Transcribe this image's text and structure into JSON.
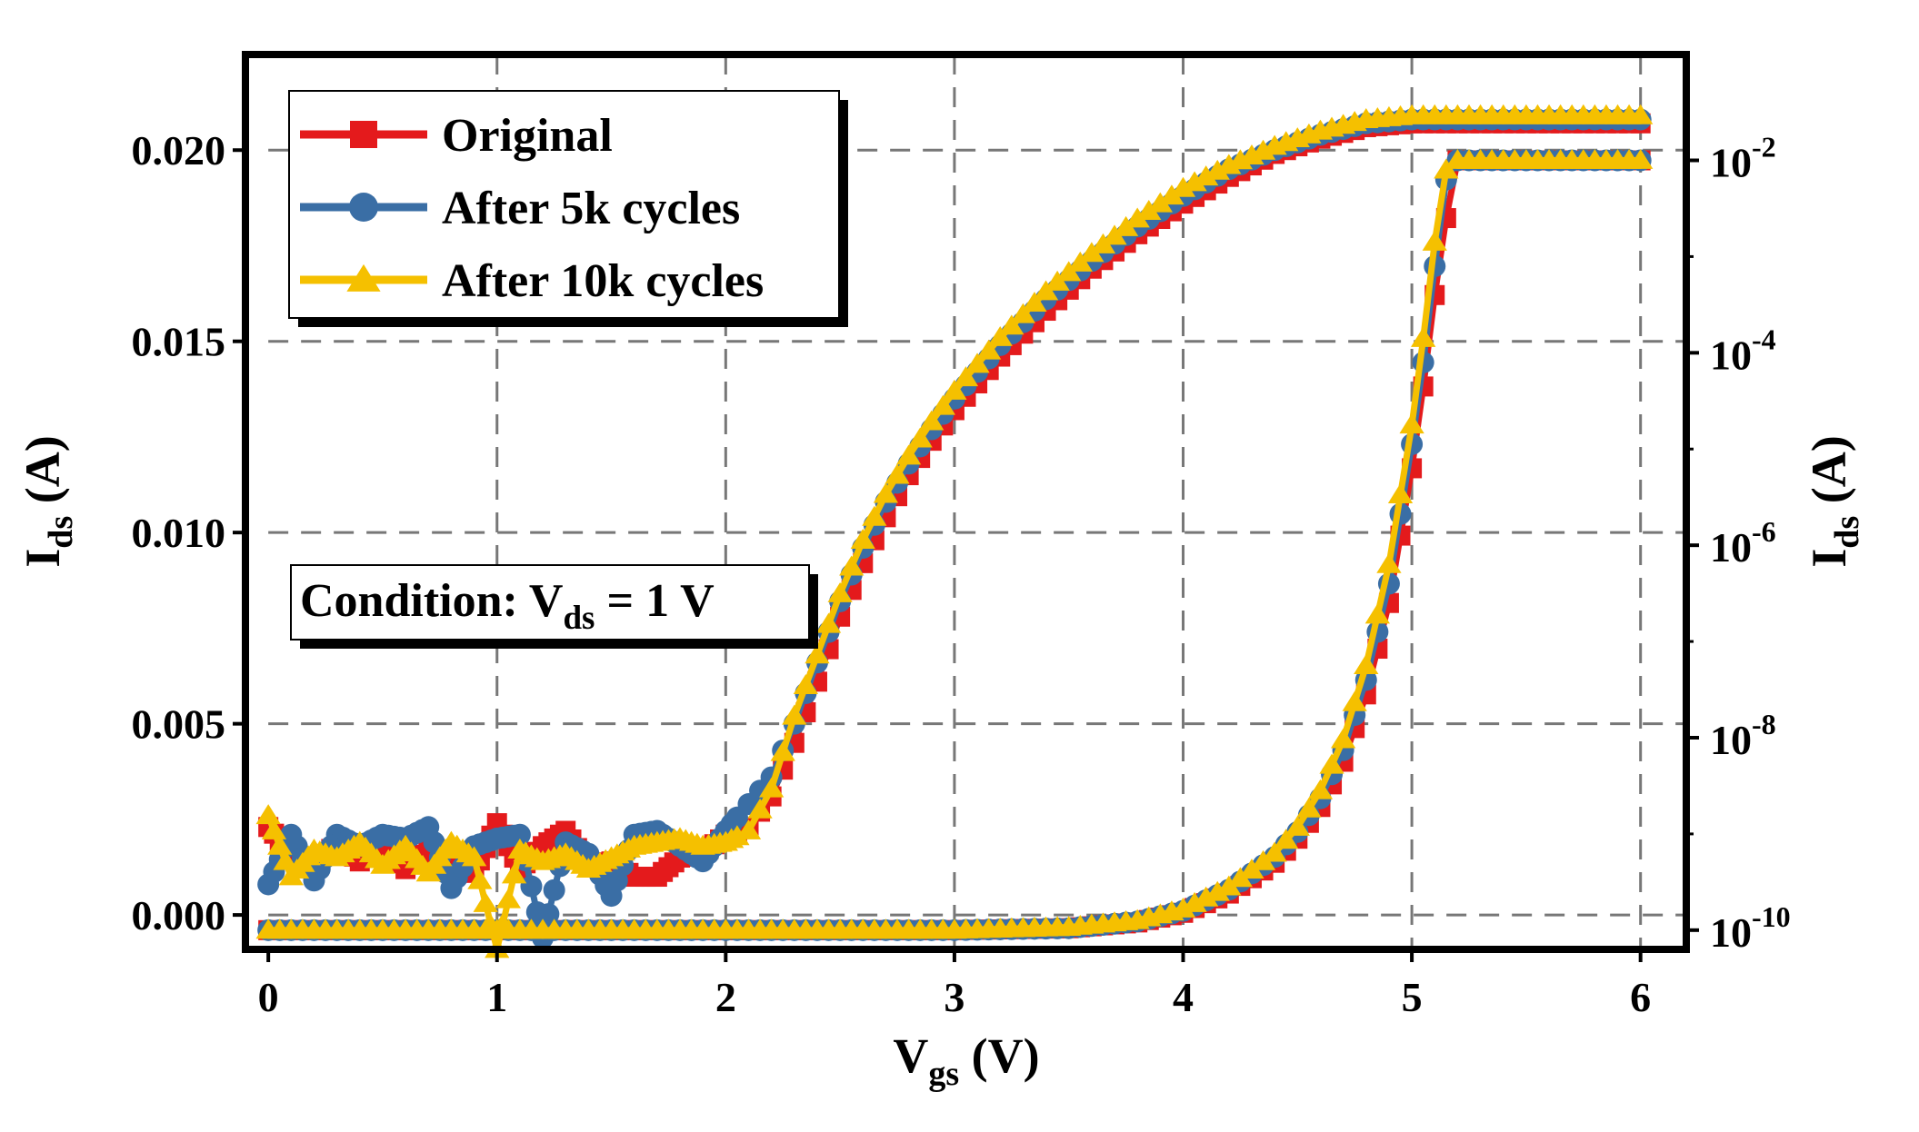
{
  "chart_data": {
    "type": "line",
    "title": "",
    "condition_label": "Condition: V",
    "condition_sub": "ds",
    "condition_value": " = 1 V",
    "xlabel": "V",
    "xlabel_sub": "gs",
    "xlabel_unit": " (V)",
    "ylabel_left": "I",
    "ylabel_left_sub": "ds",
    "ylabel_left_unit": " (A)",
    "ylabel_right": "I",
    "ylabel_right_sub": "ds",
    "ylabel_right_unit": " (A)",
    "xlim": [
      -0.1,
      6.2
    ],
    "ylim_left": [
      -0.0009,
      0.0225
    ],
    "ylim_right_log10": [
      -10.2,
      -0.9
    ],
    "x_ticks": [
      0,
      1,
      2,
      3,
      4,
      5,
      6
    ],
    "x_tick_labels": [
      "0",
      "1",
      "2",
      "3",
      "4",
      "5",
      "6"
    ],
    "y_left_ticks": [
      0,
      0.005,
      0.01,
      0.015,
      0.02
    ],
    "y_left_tick_labels": [
      "0.000",
      "0.005",
      "0.010",
      "0.015",
      "0.020"
    ],
    "y_right_ticks_log10": [
      -10,
      -8,
      -6,
      -4,
      -2
    ],
    "y_right_tick_labels": [
      {
        "base": "10",
        "exp": "-10"
      },
      {
        "base": "10",
        "exp": "-8"
      },
      {
        "base": "10",
        "exp": "-6"
      },
      {
        "base": "10",
        "exp": "-4"
      },
      {
        "base": "10",
        "exp": "-2"
      }
    ],
    "grid": true,
    "legend_position": "top-left",
    "colors": {
      "original": "#e41a1c",
      "after5k": "#3a6ea5",
      "after10k": "#f5c000"
    },
    "series": [
      {
        "name": "Original",
        "marker": "square",
        "color": "#e41a1c",
        "vth_shift": 0.0,
        "linear_x": [
          0,
          0.1,
          0.2,
          0.3,
          0.4,
          0.5,
          0.6,
          0.7,
          0.8,
          0.9,
          1.0,
          1.1,
          1.2,
          1.3,
          1.4,
          1.5,
          1.6,
          1.7,
          1.8,
          1.9,
          2.0,
          2.1,
          2.2,
          2.3,
          2.4,
          2.5,
          2.6,
          2.7,
          2.8,
          2.9,
          3.0,
          3.2,
          3.4,
          3.6,
          3.8,
          4.0,
          4.2,
          4.4,
          4.6,
          4.8,
          5.0,
          5.2,
          5.4,
          5.6,
          5.8,
          6.0
        ],
        "linear_y": [
          0.0023,
          0.0016,
          0.0012,
          0.0019,
          0.0014,
          0.0018,
          0.0012,
          0.0017,
          0.0013,
          0.0011,
          0.0024,
          0.0012,
          0.0018,
          0.0022,
          0.0013,
          0.0014,
          0.001,
          0.001,
          0.0015,
          0.0016,
          0.0021,
          0.0023,
          0.0031,
          0.0045,
          0.0061,
          0.0078,
          0.0092,
          0.0104,
          0.0115,
          0.0124,
          0.0132,
          0.0146,
          0.0158,
          0.0169,
          0.0178,
          0.0186,
          0.0193,
          0.0199,
          0.0203,
          0.0206,
          0.0207,
          0.0207,
          0.0207,
          0.0207,
          0.0207,
          0.0207
        ],
        "log_x": [
          0,
          0.5,
          1.0,
          1.5,
          2.0,
          2.5,
          3.0,
          3.5,
          3.8,
          4.0,
          4.2,
          4.4,
          4.5,
          4.6,
          4.7,
          4.8,
          4.9,
          5.0,
          5.05,
          5.1,
          5.15,
          5.2,
          5.4,
          5.6,
          5.8,
          6.0
        ],
        "log_y_exp": [
          -10.0,
          -10.0,
          -10.0,
          -10.0,
          -10.0,
          -10.0,
          -10.0,
          -9.98,
          -9.92,
          -9.82,
          -9.62,
          -9.3,
          -9.05,
          -8.72,
          -8.25,
          -7.55,
          -6.6,
          -5.2,
          -4.35,
          -3.4,
          -2.6,
          -2.0,
          -2.0,
          -2.0,
          -2.0,
          -2.0
        ]
      },
      {
        "name": "After 5k cycles",
        "marker": "circle",
        "color": "#3a6ea5",
        "vth_shift": -0.03,
        "linear_x": [
          0,
          0.1,
          0.2,
          0.3,
          0.4,
          0.5,
          0.6,
          0.7,
          0.8,
          0.9,
          1.0,
          1.1,
          1.2,
          1.3,
          1.4,
          1.5,
          1.6,
          1.7,
          1.8,
          1.9,
          2.0,
          2.1,
          2.2,
          2.3,
          2.4,
          2.5,
          2.6,
          2.7,
          2.8,
          2.9,
          3.0,
          3.2,
          3.4,
          3.6,
          3.8,
          4.0,
          4.2,
          4.4,
          4.6,
          4.8,
          5.0,
          5.2,
          5.4,
          5.6,
          5.8,
          6.0
        ],
        "linear_y": [
          0.0008,
          0.0021,
          0.0009,
          0.0021,
          0.0018,
          0.0021,
          0.002,
          0.0023,
          0.0007,
          0.0018,
          0.002,
          0.0021,
          -0.0006,
          0.0019,
          0.0016,
          0.0005,
          0.0021,
          0.0022,
          0.0018,
          0.0014,
          0.0022,
          0.0029,
          0.0036,
          0.005,
          0.0066,
          0.0082,
          0.0096,
          0.0108,
          0.0118,
          0.0127,
          0.0135,
          0.0149,
          0.0161,
          0.0171,
          0.018,
          0.0188,
          0.0195,
          0.02,
          0.0204,
          0.0207,
          0.0208,
          0.0208,
          0.0208,
          0.0208,
          0.0208,
          0.0208
        ],
        "log_x": [
          0,
          0.5,
          1.0,
          1.5,
          2.0,
          2.5,
          3.0,
          3.5,
          3.8,
          4.0,
          4.2,
          4.4,
          4.5,
          4.6,
          4.7,
          4.8,
          4.9,
          5.0,
          5.05,
          5.1,
          5.15,
          5.2,
          5.4,
          5.6,
          5.8,
          6.0
        ],
        "log_y_exp": [
          -10.0,
          -10.0,
          -10.0,
          -10.0,
          -10.0,
          -10.0,
          -10.0,
          -9.98,
          -9.91,
          -9.8,
          -9.58,
          -9.24,
          -8.98,
          -8.63,
          -8.13,
          -7.4,
          -6.4,
          -4.95,
          -4.1,
          -3.1,
          -2.2,
          -2.0,
          -2.0,
          -2.0,
          -2.0,
          -2.0
        ]
      },
      {
        "name": "After 10k cycles",
        "marker": "triangle",
        "color": "#f5c000",
        "vth_shift": -0.05,
        "linear_x": [
          0,
          0.1,
          0.2,
          0.3,
          0.4,
          0.5,
          0.6,
          0.7,
          0.8,
          0.9,
          1.0,
          1.1,
          1.2,
          1.3,
          1.4,
          1.5,
          1.6,
          1.7,
          1.8,
          1.9,
          2.0,
          2.1,
          2.2,
          2.3,
          2.4,
          2.5,
          2.6,
          2.7,
          2.8,
          2.9,
          3.0,
          3.2,
          3.4,
          3.6,
          3.8,
          4.0,
          4.2,
          4.4,
          4.6,
          4.8,
          5.0,
          5.2,
          5.4,
          5.6,
          5.8,
          6.0
        ],
        "linear_y": [
          0.0026,
          0.001,
          0.0017,
          0.0015,
          0.0019,
          0.0013,
          0.0018,
          0.0011,
          0.0019,
          0.0015,
          -0.0009,
          0.0017,
          0.0014,
          0.0016,
          0.0012,
          0.0015,
          0.0018,
          0.0019,
          0.002,
          0.0018,
          0.0019,
          0.0022,
          0.0033,
          0.0052,
          0.0068,
          0.0084,
          0.0098,
          0.011,
          0.012,
          0.0129,
          0.0137,
          0.0151,
          0.0163,
          0.0173,
          0.0182,
          0.019,
          0.0196,
          0.0201,
          0.0205,
          0.0208,
          0.0209,
          0.0209,
          0.0209,
          0.0209,
          0.0209,
          0.0209
        ],
        "log_x": [
          0,
          0.5,
          1.0,
          1.5,
          2.0,
          2.5,
          3.0,
          3.5,
          3.8,
          4.0,
          4.2,
          4.4,
          4.5,
          4.6,
          4.7,
          4.8,
          4.9,
          5.0,
          5.05,
          5.1,
          5.15,
          5.2,
          5.4,
          5.6,
          5.8,
          6.0
        ],
        "log_y_exp": [
          -10.0,
          -10.0,
          -10.0,
          -10.0,
          -10.0,
          -10.0,
          -10.0,
          -9.97,
          -9.9,
          -9.78,
          -9.55,
          -9.2,
          -8.93,
          -8.55,
          -8.02,
          -7.25,
          -6.2,
          -4.75,
          -3.85,
          -2.85,
          -2.1,
          -2.0,
          -2.0,
          -2.0,
          -2.0,
          -2.0
        ]
      }
    ]
  }
}
